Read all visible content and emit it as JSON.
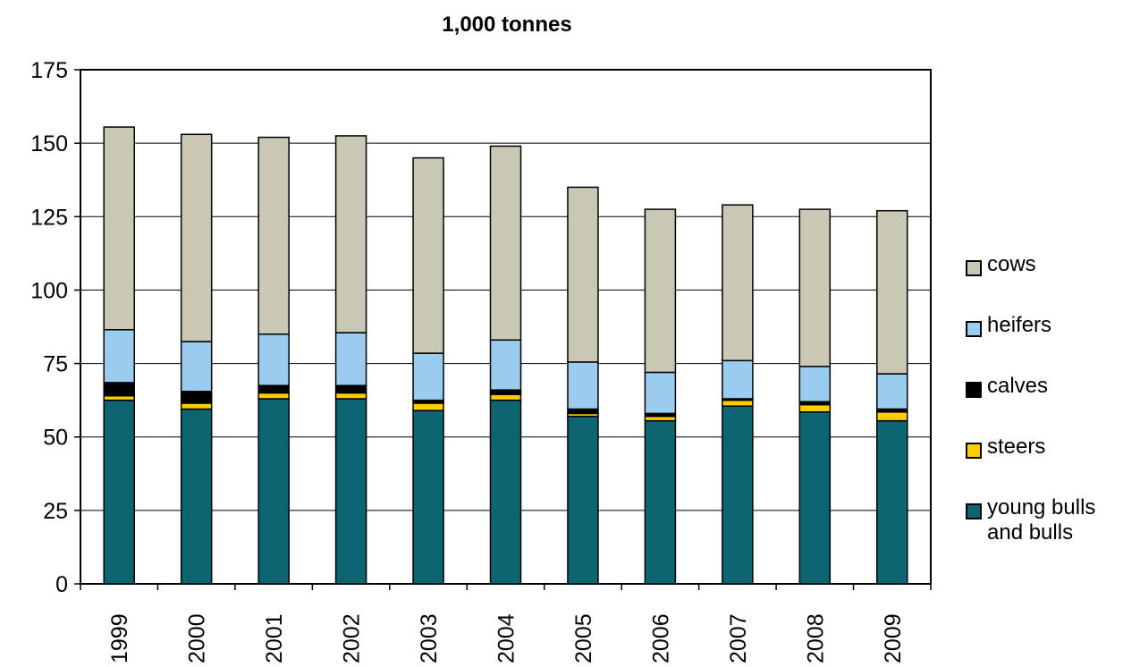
{
  "chart_data": {
    "type": "bar",
    "stacked": true,
    "title": "1,000 tonnes",
    "xlabel": "",
    "ylabel": "",
    "ylim": [
      0,
      175
    ],
    "yticks": [
      0,
      25,
      50,
      75,
      100,
      125,
      150,
      175
    ],
    "grid": true,
    "legend_position": "right",
    "categories": [
      "1999",
      "2000",
      "2001",
      "2002",
      "2003",
      "2004",
      "2005",
      "2006",
      "2007",
      "2008",
      "2009"
    ],
    "series": [
      {
        "name": "young bulls and bulls",
        "color": "#0d6572",
        "values": [
          62.5,
          59.5,
          63,
          63,
          59,
          62.5,
          57,
          55.5,
          60.5,
          58.5,
          55.5
        ]
      },
      {
        "name": "steers",
        "color": "#ffcc00",
        "values": [
          1.5,
          2,
          2,
          2,
          2.5,
          2,
          1,
          1.5,
          2,
          2.5,
          3
        ]
      },
      {
        "name": "calves",
        "color": "#000000",
        "values": [
          4.5,
          4,
          2.5,
          2.5,
          1,
          1.5,
          1.5,
          1,
          0.5,
          1,
          1
        ]
      },
      {
        "name": "heifers",
        "color": "#99ccee",
        "values": [
          18,
          17,
          17.5,
          18,
          16,
          17,
          16,
          14,
          13,
          12,
          12
        ]
      },
      {
        "name": "cows",
        "color": "#c8c8b4",
        "values": [
          69,
          70.5,
          67,
          67,
          66.5,
          66,
          59.5,
          55.5,
          53,
          53.5,
          55.5
        ]
      }
    ],
    "legend_order": [
      "cows",
      "heifers",
      "calves",
      "steers",
      "young bulls and bulls"
    ]
  },
  "legend": {
    "cows": "cows",
    "heifers": "heifers",
    "calves": "calves",
    "steers": "steers",
    "young_bulls_line1": "young bulls",
    "young_bulls_line2": "and bulls"
  }
}
